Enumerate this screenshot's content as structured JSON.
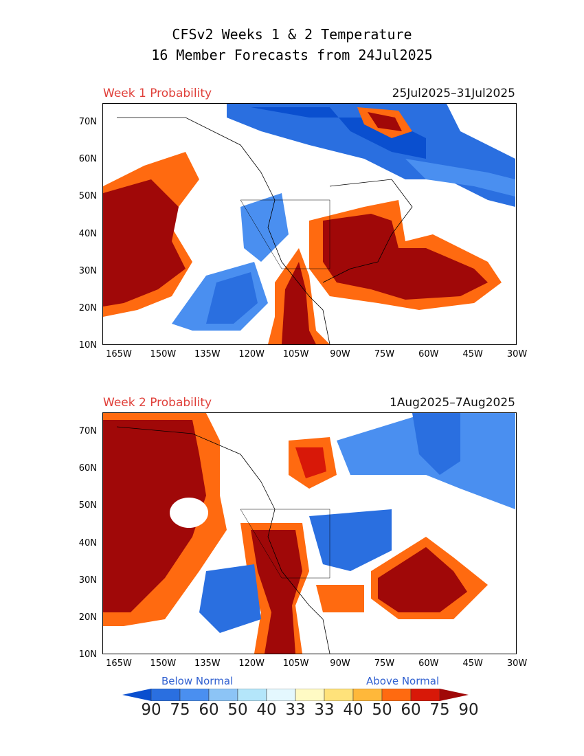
{
  "title_line1": "CFSv2 Weeks 1 & 2 Temperature",
  "title_line2": "16 Member Forecasts from 24Jul2025",
  "panels": [
    {
      "label": "Week 1 Probability",
      "dates": "25Jul2025–31Jul2025"
    },
    {
      "label": "Week 2 Probability",
      "dates": "1Aug2025–7Aug2025"
    }
  ],
  "lat_labels": [
    "70N",
    "60N",
    "50N",
    "40N",
    "30N",
    "20N",
    "10N"
  ],
  "lon_labels": [
    "165W",
    "150W",
    "135W",
    "120W",
    "105W",
    "90W",
    "75W",
    "60W",
    "45W",
    "30W"
  ],
  "legend": {
    "below_label": "Below Normal",
    "above_label": "Above Normal",
    "values": [
      "90",
      "75",
      "60",
      "50",
      "40",
      "33",
      "33",
      "40",
      "50",
      "60",
      "75",
      "90"
    ],
    "colors": [
      "#0a4fcf",
      "#2a6fe0",
      "#4a8ff0",
      "#8cc4f6",
      "#b4e6fa",
      "#e4f8fe",
      "#fffac4",
      "#ffe27a",
      "#ffb83a",
      "#ff6a10",
      "#d81808",
      "#a00808"
    ]
  }
}
